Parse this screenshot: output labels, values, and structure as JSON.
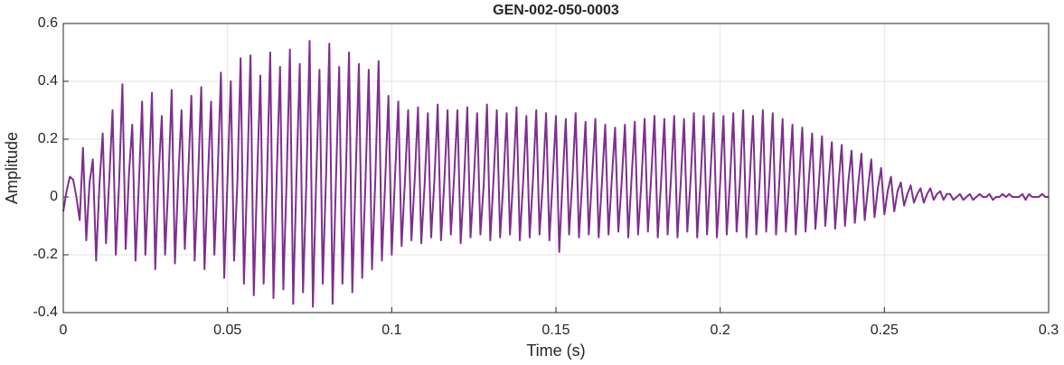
{
  "chart_data": {
    "type": "line",
    "title": "GEN-002-050-0003",
    "xlabel": "Time (s)",
    "ylabel": "Amplitude",
    "color": "#7e2f8e",
    "grid": true,
    "xlim": [
      0,
      0.3
    ],
    "xticks": [
      0,
      0.05,
      0.1,
      0.15,
      0.2,
      0.25,
      0.3
    ],
    "ylim": [
      -0.4,
      0.6
    ],
    "yticks": [
      -0.4,
      -0.2,
      0,
      0.2,
      0.4,
      0.6
    ],
    "x": [
      0,
      0.001,
      0.002,
      0.003,
      0.004,
      0.005,
      0.006,
      0.007,
      0.008,
      0.009,
      0.01,
      0.011,
      0.012,
      0.013,
      0.014,
      0.015,
      0.016,
      0.017,
      0.018,
      0.019,
      0.02,
      0.021,
      0.022,
      0.023,
      0.024,
      0.025,
      0.026,
      0.027,
      0.028,
      0.029,
      0.03,
      0.031,
      0.032,
      0.033,
      0.034,
      0.035,
      0.036,
      0.037,
      0.038,
      0.039,
      0.04,
      0.041,
      0.042,
      0.043,
      0.044,
      0.045,
      0.046,
      0.047,
      0.048,
      0.049,
      0.05,
      0.051,
      0.052,
      0.053,
      0.054,
      0.055,
      0.056,
      0.057,
      0.058,
      0.059,
      0.06,
      0.061,
      0.062,
      0.063,
      0.064,
      0.065,
      0.066,
      0.067,
      0.068,
      0.069,
      0.07,
      0.071,
      0.072,
      0.073,
      0.074,
      0.075,
      0.076,
      0.077,
      0.078,
      0.079,
      0.08,
      0.081,
      0.082,
      0.083,
      0.084,
      0.085,
      0.086,
      0.087,
      0.088,
      0.089,
      0.09,
      0.091,
      0.092,
      0.093,
      0.094,
      0.095,
      0.096,
      0.097,
      0.098,
      0.099,
      0.1,
      0.101,
      0.102,
      0.103,
      0.104,
      0.105,
      0.106,
      0.107,
      0.108,
      0.109,
      0.11,
      0.111,
      0.112,
      0.113,
      0.114,
      0.115,
      0.116,
      0.117,
      0.118,
      0.119,
      0.12,
      0.121,
      0.122,
      0.123,
      0.124,
      0.125,
      0.126,
      0.127,
      0.128,
      0.129,
      0.13,
      0.131,
      0.132,
      0.133,
      0.134,
      0.135,
      0.136,
      0.137,
      0.138,
      0.139,
      0.14,
      0.141,
      0.142,
      0.143,
      0.144,
      0.145,
      0.146,
      0.147,
      0.148,
      0.149,
      0.15,
      0.151,
      0.152,
      0.153,
      0.154,
      0.155,
      0.156,
      0.157,
      0.158,
      0.159,
      0.16,
      0.161,
      0.162,
      0.163,
      0.164,
      0.165,
      0.166,
      0.167,
      0.168,
      0.169,
      0.17,
      0.171,
      0.172,
      0.173,
      0.174,
      0.175,
      0.176,
      0.177,
      0.178,
      0.179,
      0.18,
      0.181,
      0.182,
      0.183,
      0.184,
      0.185,
      0.186,
      0.187,
      0.188,
      0.189,
      0.19,
      0.191,
      0.192,
      0.193,
      0.194,
      0.195,
      0.196,
      0.197,
      0.198,
      0.199,
      0.2,
      0.201,
      0.202,
      0.203,
      0.204,
      0.205,
      0.206,
      0.207,
      0.208,
      0.209,
      0.21,
      0.211,
      0.212,
      0.213,
      0.214,
      0.215,
      0.216,
      0.217,
      0.218,
      0.219,
      0.22,
      0.221,
      0.222,
      0.223,
      0.224,
      0.225,
      0.226,
      0.227,
      0.228,
      0.229,
      0.23,
      0.231,
      0.232,
      0.233,
      0.234,
      0.235,
      0.236,
      0.237,
      0.238,
      0.239,
      0.24,
      0.241,
      0.242,
      0.243,
      0.244,
      0.245,
      0.246,
      0.247,
      0.248,
      0.249,
      0.25,
      0.251,
      0.252,
      0.253,
      0.254,
      0.255,
      0.256,
      0.257,
      0.258,
      0.259,
      0.26,
      0.261,
      0.262,
      0.263,
      0.264,
      0.265,
      0.266,
      0.267,
      0.268,
      0.269,
      0.27,
      0.271,
      0.272,
      0.273,
      0.274,
      0.275,
      0.276,
      0.277,
      0.278,
      0.279,
      0.28,
      0.281,
      0.282,
      0.283,
      0.284,
      0.285,
      0.286,
      0.287,
      0.288,
      0.289,
      0.29,
      0.291,
      0.292,
      0.293,
      0.294,
      0.295,
      0.296,
      0.297,
      0.298,
      0.299,
      0.3
    ],
    "values": [
      -0.05,
      0.02,
      0.07,
      0.06,
      0.0,
      -0.08,
      0.17,
      -0.15,
      0.05,
      0.13,
      -0.22,
      0.04,
      0.22,
      -0.16,
      0.06,
      0.3,
      -0.2,
      0.05,
      0.39,
      -0.18,
      0.08,
      0.25,
      -0.22,
      0.04,
      0.33,
      -0.2,
      0.06,
      0.36,
      -0.25,
      0.07,
      0.28,
      -0.2,
      0.05,
      0.37,
      -0.23,
      0.06,
      0.3,
      -0.18,
      0.07,
      0.35,
      -0.22,
      0.05,
      0.38,
      -0.25,
      0.06,
      0.33,
      -0.2,
      0.08,
      0.43,
      -0.28,
      0.06,
      0.4,
      -0.22,
      0.05,
      0.48,
      -0.3,
      0.07,
      0.49,
      -0.34,
      0.06,
      0.42,
      -0.3,
      0.05,
      0.5,
      -0.35,
      0.08,
      0.45,
      -0.32,
      0.06,
      0.51,
      -0.37,
      0.07,
      0.46,
      -0.33,
      0.05,
      0.54,
      -0.38,
      0.06,
      0.44,
      -0.3,
      0.07,
      0.53,
      -0.37,
      0.05,
      0.45,
      -0.3,
      0.06,
      0.5,
      -0.33,
      0.07,
      0.46,
      -0.28,
      0.05,
      0.44,
      -0.25,
      0.06,
      0.47,
      -0.22,
      0.05,
      0.35,
      -0.2,
      0.07,
      0.33,
      -0.17,
      0.05,
      0.3,
      -0.15,
      0.06,
      0.31,
      -0.16,
      0.04,
      0.29,
      -0.14,
      0.06,
      0.32,
      -0.15,
      0.05,
      0.3,
      -0.13,
      0.07,
      0.3,
      -0.16,
      0.05,
      0.31,
      -0.14,
      0.06,
      0.29,
      -0.13,
      0.04,
      0.32,
      -0.15,
      0.06,
      0.3,
      -0.14,
      0.05,
      0.29,
      -0.13,
      0.07,
      0.31,
      -0.15,
      0.05,
      0.28,
      -0.14,
      0.06,
      0.3,
      -0.13,
      0.05,
      0.29,
      -0.15,
      0.06,
      0.28,
      -0.19,
      0.05,
      0.27,
      -0.13,
      0.06,
      0.29,
      -0.14,
      0.05,
      0.26,
      -0.13,
      0.07,
      0.27,
      -0.14,
      0.05,
      0.25,
      -0.13,
      0.06,
      0.24,
      -0.12,
      0.05,
      0.25,
      -0.14,
      0.06,
      0.26,
      -0.13,
      0.05,
      0.27,
      -0.12,
      0.07,
      0.28,
      -0.14,
      0.05,
      0.27,
      -0.13,
      0.06,
      0.28,
      -0.14,
      0.05,
      0.27,
      -0.12,
      0.06,
      0.29,
      -0.14,
      0.05,
      0.28,
      -0.13,
      0.07,
      0.29,
      -0.14,
      0.05,
      0.28,
      -0.13,
      0.06,
      0.29,
      -0.12,
      0.05,
      0.3,
      -0.14,
      0.06,
      0.28,
      -0.13,
      0.05,
      0.3,
      -0.12,
      0.06,
      0.29,
      -0.13,
      0.05,
      0.27,
      -0.12,
      0.06,
      0.25,
      -0.13,
      0.05,
      0.24,
      -0.12,
      0.06,
      0.22,
      -0.11,
      0.04,
      0.21,
      -0.1,
      0.05,
      0.19,
      -0.11,
      0.04,
      0.18,
      -0.1,
      0.05,
      0.16,
      -0.09,
      0.04,
      0.15,
      -0.08,
      0.03,
      0.13,
      -0.07,
      0.03,
      0.1,
      -0.06,
      0.02,
      0.07,
      -0.05,
      0.02,
      0.05,
      -0.03,
      0.01,
      0.04,
      -0.02,
      0.01,
      0.03,
      -0.02,
      0.01,
      0.03,
      -0.01,
      0.01,
      0.02,
      -0.01,
      0.01,
      0.01,
      -0.01,
      0.0,
      0.01,
      -0.01,
      0.0,
      0.01,
      -0.01,
      0.0,
      0.01,
      0.0,
      0.0,
      0.01,
      -0.01,
      0.0,
      0.0,
      0.01,
      0.0,
      0.01,
      0.0,
      0.0,
      0.0,
      0.01,
      -0.01,
      0.01,
      0.0,
      0.0,
      0.0,
      0.01,
      0.0,
      0.0
    ]
  }
}
